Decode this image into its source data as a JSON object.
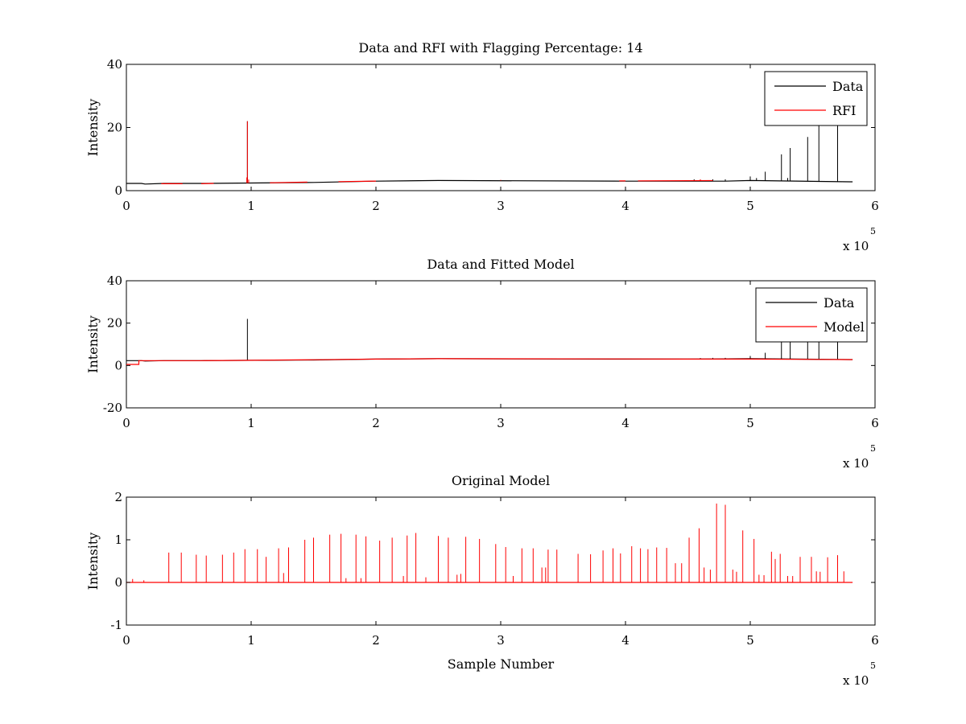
{
  "chart_data": [
    {
      "type": "line",
      "title": "Data and RFI with Flagging Percentage: 14",
      "xlabel": "",
      "ylabel": "Intensity",
      "xlim": [
        0,
        600000
      ],
      "ylim": [
        0,
        40
      ],
      "xticks": [
        0,
        1,
        2,
        3,
        4,
        5,
        6
      ],
      "yticks": [
        0,
        20,
        40
      ],
      "x_multiplier": "x 10",
      "x_multiplier_exp": "5",
      "grid": false,
      "legend": "top-right",
      "series": [
        {
          "name": "Data",
          "color": "#000000",
          "baseline": [
            [
              0,
              2.3
            ],
            [
              12000,
              2.3
            ],
            [
              15000,
              2.1
            ],
            [
              30000,
              2.3
            ],
            [
              60000,
              2.3
            ],
            [
              90000,
              2.4
            ],
            [
              150000,
              2.6
            ],
            [
              200000,
              3.0
            ],
            [
              250000,
              3.2
            ],
            [
              400000,
              3.0
            ],
            [
              450000,
              3.0
            ],
            [
              480000,
              3.0
            ],
            [
              500000,
              3.2
            ],
            [
              580000,
              2.8
            ],
            [
              582000,
              2.8
            ]
          ],
          "spikes": [
            [
              97000,
              22
            ],
            [
              500000,
              4.5
            ],
            [
              505000,
              4
            ],
            [
              512000,
              6
            ],
            [
              525000,
              11.5
            ],
            [
              532000,
              13.5
            ],
            [
              546000,
              17
            ],
            [
              555000,
              26
            ],
            [
              570000,
              26
            ],
            [
              480000,
              3.6
            ],
            [
              470000,
              3.6
            ],
            [
              460000,
              3.5
            ],
            [
              455000,
              3.6
            ],
            [
              530000,
              4
            ]
          ]
        },
        {
          "name": "RFI",
          "color": "#ff0000",
          "baseline": [
            [
              28000,
              2.2
            ],
            [
              45000,
              2.2
            ],
            [
              60000,
              2.2
            ],
            [
              70000,
              2.3
            ],
            [
              115000,
              2.5
            ],
            [
              125000,
              2.6
            ],
            [
              145000,
              2.7
            ],
            [
              195000,
              3.0
            ],
            [
              240000,
              3.2
            ],
            [
              300000,
              3.2
            ],
            [
              395000,
              3.1
            ],
            [
              440000,
              3.1
            ],
            [
              470000,
              3.2
            ]
          ],
          "segments": [
            [
              28000,
              45000
            ],
            [
              60000,
              70000
            ],
            [
              115000,
              145000
            ],
            [
              170000,
              200000
            ],
            [
              395000,
              400000
            ],
            [
              410000,
              470000
            ]
          ],
          "spikes": [
            [
              97000,
              22
            ],
            [
              96500,
              4.2
            ],
            [
              98000,
              3.5
            ],
            [
              300000,
              3.4
            ],
            [
              460000,
              3.6
            ]
          ]
        }
      ]
    },
    {
      "type": "line",
      "title": "Data and Fitted Model",
      "xlabel": "",
      "ylabel": "Intensity",
      "xlim": [
        0,
        600000
      ],
      "ylim": [
        -20,
        40
      ],
      "xticks": [
        0,
        1,
        2,
        3,
        4,
        5,
        6
      ],
      "yticks": [
        -20,
        0,
        20,
        40
      ],
      "x_multiplier": "x 10",
      "x_multiplier_exp": "5",
      "grid": false,
      "legend": "top-right",
      "series": [
        {
          "name": "Data",
          "color": "#000000",
          "baseline": [
            [
              0,
              2.3
            ],
            [
              12000,
              2.3
            ],
            [
              15000,
              2.1
            ],
            [
              30000,
              2.3
            ],
            [
              60000,
              2.3
            ],
            [
              90000,
              2.4
            ],
            [
              150000,
              2.6
            ],
            [
              200000,
              3.0
            ],
            [
              250000,
              3.2
            ],
            [
              400000,
              3.0
            ],
            [
              450000,
              3.0
            ],
            [
              500000,
              3.2
            ],
            [
              580000,
              2.8
            ],
            [
              582000,
              2.8
            ]
          ],
          "spikes": [
            [
              97000,
              22
            ],
            [
              512000,
              6
            ],
            [
              525000,
              11.5
            ],
            [
              532000,
              13.5
            ],
            [
              546000,
              17
            ],
            [
              555000,
              26
            ],
            [
              570000,
              26
            ],
            [
              480000,
              3.6
            ],
            [
              470000,
              3.6
            ],
            [
              460000,
              3.5
            ],
            [
              500000,
              4.5
            ]
          ]
        },
        {
          "name": "Model",
          "color": "#ff0000",
          "baseline": [
            [
              0,
              0.5
            ],
            [
              10000,
              0.5
            ],
            [
              10000,
              2.3
            ],
            [
              30000,
              2.3
            ],
            [
              60000,
              2.3
            ],
            [
              90000,
              2.4
            ],
            [
              150000,
              2.7
            ],
            [
              200000,
              3.0
            ],
            [
              250000,
              3.2
            ],
            [
              400000,
              3.1
            ],
            [
              450000,
              3.0
            ],
            [
              500000,
              3.0
            ],
            [
              580000,
              2.8
            ],
            [
              582000,
              2.8
            ]
          ]
        }
      ]
    },
    {
      "type": "line",
      "title": "Original Model",
      "xlabel": "Sample Number",
      "ylabel": "Intensity",
      "xlim": [
        0,
        600000
      ],
      "ylim": [
        -1,
        2
      ],
      "xticks": [
        0,
        1,
        2,
        3,
        4,
        5,
        6
      ],
      "yticks": [
        -1,
        0,
        1,
        2
      ],
      "x_multiplier": "x 10",
      "x_multiplier_exp": "5",
      "grid": false,
      "legend": "none",
      "series": [
        {
          "name": "",
          "color": "#ff0000",
          "baseline": [
            [
              0,
              0
            ],
            [
              582000,
              0
            ]
          ],
          "spikes": [
            [
              5000,
              0.08
            ],
            [
              14000,
              0.05
            ],
            [
              34000,
              0.7
            ],
            [
              44000,
              0.7
            ],
            [
              56000,
              0.65
            ],
            [
              64000,
              0.63
            ],
            [
              77000,
              0.65
            ],
            [
              86000,
              0.7
            ],
            [
              95000,
              0.78
            ],
            [
              105000,
              0.78
            ],
            [
              112000,
              0.6
            ],
            [
              122000,
              0.8
            ],
            [
              130000,
              0.82
            ],
            [
              143000,
              1.0
            ],
            [
              150000,
              1.05
            ],
            [
              163000,
              1.12
            ],
            [
              172000,
              1.14
            ],
            [
              184000,
              1.12
            ],
            [
              192000,
              1.08
            ],
            [
              203000,
              0.98
            ],
            [
              213000,
              1.05
            ],
            [
              225000,
              1.1
            ],
            [
              232000,
              1.16
            ],
            [
              250000,
              1.09
            ],
            [
              258000,
              1.05
            ],
            [
              272000,
              1.07
            ],
            [
              283000,
              1.02
            ],
            [
              296000,
              0.9
            ],
            [
              304000,
              0.83
            ],
            [
              317000,
              0.8
            ],
            [
              326000,
              0.8
            ],
            [
              338000,
              0.77
            ],
            [
              345000,
              0.77
            ],
            [
              362000,
              0.67
            ],
            [
              372000,
              0.66
            ],
            [
              382000,
              0.75
            ],
            [
              390000,
              0.8
            ],
            [
              396000,
              0.68
            ],
            [
              405000,
              0.85
            ],
            [
              412000,
              0.8
            ],
            [
              418000,
              0.78
            ],
            [
              425000,
              0.82
            ],
            [
              433000,
              0.81
            ],
            [
              440000,
              0.45
            ],
            [
              445000,
              0.45
            ],
            [
              451000,
              1.05
            ],
            [
              459000,
              1.27
            ],
            [
              463000,
              0.35
            ],
            [
              468000,
              0.3
            ],
            [
              473000,
              1.85
            ],
            [
              480000,
              1.82
            ],
            [
              486000,
              0.3
            ],
            [
              489000,
              0.25
            ],
            [
              494000,
              1.22
            ],
            [
              503000,
              1.02
            ],
            [
              507000,
              0.18
            ],
            [
              511000,
              0.17
            ],
            [
              517000,
              0.72
            ],
            [
              524000,
              0.67
            ],
            [
              530000,
              0.15
            ],
            [
              534000,
              0.15
            ],
            [
              540000,
              0.6
            ],
            [
              549000,
              0.6
            ],
            [
              553000,
              0.26
            ],
            [
              556000,
              0.25
            ],
            [
              562000,
              0.59
            ],
            [
              570000,
              0.64
            ],
            [
              575000,
              0.26
            ],
            [
              520000,
              0.55
            ],
            [
              333000,
              0.35
            ],
            [
              336000,
              0.35
            ],
            [
              310000,
              0.15
            ],
            [
              265000,
              0.18
            ],
            [
              268000,
              0.2
            ],
            [
              176000,
              0.1
            ],
            [
              188000,
              0.1
            ],
            [
              222000,
              0.15
            ],
            [
              240000,
              0.12
            ],
            [
              126000,
              0.22
            ]
          ]
        }
      ]
    }
  ]
}
